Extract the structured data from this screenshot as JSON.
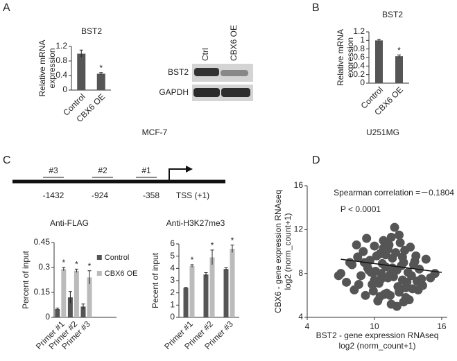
{
  "panels": [
    "A",
    "B",
    "C",
    "D"
  ],
  "captions": [
    "MCF-7",
    "U251MG"
  ],
  "blot": {
    "lanes": [
      "Ctrl",
      "CBX6 OE"
    ],
    "rows": [
      "BST2",
      "GAPDH"
    ]
  },
  "promoter": {
    "sites": [
      {
        "label": "#3",
        "position": "-1432"
      },
      {
        "label": "#2",
        "position": "-924"
      },
      {
        "label": "#1",
        "position": "-358"
      }
    ],
    "tss": "TSS (+1)"
  },
  "chart_data": [
    {
      "type": "bar",
      "title": "BST2",
      "ylabel": [
        "Relative mRNA",
        "expression"
      ],
      "categories": [
        "Control",
        "CBX6 OE"
      ],
      "values": [
        1.0,
        0.45
      ],
      "errors": [
        0.1,
        0.03
      ],
      "significance": [
        null,
        "*"
      ],
      "color": "#555555",
      "ylim": [
        0,
        1.2
      ],
      "yticks": [
        0,
        0.4,
        0.8,
        1.2
      ]
    },
    {
      "type": "bar",
      "title": "BST2",
      "ylabel": [
        "Relative mRNA",
        "expression"
      ],
      "categories": [
        "Control",
        "CBX6 OE"
      ],
      "values": [
        1.0,
        0.63
      ],
      "errors": [
        0.03,
        0.03
      ],
      "significance": [
        null,
        "*"
      ],
      "color": "#555555",
      "ylim": [
        0,
        1.2
      ],
      "yticks": [
        0,
        0.2,
        0.4,
        0.6,
        0.8,
        1,
        1.2
      ]
    },
    {
      "type": "grouped_bar",
      "title": "Anti-FLAG",
      "ylabel": [
        "Percent of input"
      ],
      "categories": [
        "Primer #1",
        "Primer #2",
        "Primer #3"
      ],
      "series": [
        {
          "name": "Control",
          "color": "#555555",
          "values": [
            0.05,
            0.12,
            0.065
          ],
          "errors": [
            0.005,
            0.035,
            0.015
          ],
          "significance": [
            null,
            null,
            null
          ]
        },
        {
          "name": "CBX6 OE",
          "color": "#bbbbbb",
          "values": [
            0.29,
            0.28,
            0.24
          ],
          "errors": [
            0.01,
            0.01,
            0.04
          ],
          "significance": [
            "*",
            "*",
            "*"
          ]
        }
      ],
      "legend": "right",
      "ylim": [
        0,
        0.45
      ],
      "yticks": [
        0,
        0.15,
        0.3,
        0.45
      ]
    },
    {
      "type": "grouped_bar",
      "title": "Anti-H3K27me3",
      "ylabel": [
        "Pecent of input"
      ],
      "categories": [
        "Primer #1",
        "Primer #2",
        "Primer #3"
      ],
      "series": [
        {
          "name": "Control",
          "color": "#555555",
          "values": [
            2.4,
            3.5,
            3.95
          ],
          "errors": [
            0.05,
            0.15,
            0.1
          ],
          "significance": [
            null,
            null,
            null
          ]
        },
        {
          "name": "CBX6 OE",
          "color": "#bbbbbb",
          "values": [
            4.2,
            4.9,
            5.6
          ],
          "errors": [
            0.1,
            0.6,
            0.3
          ],
          "significance": [
            "*",
            "*",
            "*"
          ]
        }
      ],
      "ylim": [
        0,
        6
      ],
      "yticks": [
        0,
        1,
        2,
        3,
        4,
        5,
        6
      ]
    },
    {
      "type": "scatter",
      "xlabel": [
        "BST2 - gene expression RNAseq",
        "log2 (norm_count+1)"
      ],
      "ylabel": [
        "CBX6 - gene expression RNAseq",
        "log2 (norm_count+1)"
      ],
      "annotations": [
        "Spearman correlation =－0.1804",
        "P < 0.0001"
      ],
      "color": "#555555",
      "x": [
        7.0,
        7.5,
        8.0,
        8.2,
        8.5,
        8.8,
        9.0,
        9.2,
        9.4,
        9.6,
        9.8,
        10.0,
        10.1,
        10.3,
        10.5,
        10.6,
        10.8,
        11.0,
        11.1,
        11.2,
        11.4,
        11.5,
        11.6,
        11.8,
        12.0,
        12.1,
        12.3,
        12.5,
        12.6,
        12.8,
        13.0,
        13.2,
        13.4,
        13.6,
        13.8,
        14.0,
        14.3,
        14.6,
        15.0,
        15.4,
        9.1,
        9.5,
        9.9,
        10.2,
        10.4,
        10.7,
        10.9,
        11.3,
        11.7,
        11.9,
        12.2,
        12.4,
        12.7,
        12.9,
        13.1,
        13.5,
        13.9,
        10.0,
        10.5,
        11.0,
        11.5,
        12.0,
        12.5,
        8.6,
        9.3,
        9.7,
        10.8,
        11.2,
        11.6,
        12.2,
        12.8,
        13.3,
        13.7,
        14.2,
        6.8,
        7.8,
        8.4,
        11.4,
        10.6,
        12.6
      ],
      "y": [
        8.0,
        7.2,
        8.8,
        6.5,
        9.5,
        7.8,
        10.0,
        6.0,
        8.5,
        9.2,
        7.0,
        10.5,
        8.2,
        5.5,
        9.8,
        7.5,
        11.0,
        8.6,
        6.2,
        10.2,
        7.9,
        5.2,
        9.4,
        12.2,
        8.3,
        6.8,
        10.8,
        7.4,
        9.0,
        5.8,
        8.1,
        10.4,
        6.6,
        9.1,
        7.3,
        8.4,
        6.9,
        9.3,
        7.6,
        8.0,
        9.0,
        8.3,
        6.4,
        9.6,
        7.1,
        8.9,
        6.1,
        10.6,
        7.7,
        9.9,
        6.3,
        8.7,
        10.1,
        7.2,
        5.6,
        8.8,
        6.5,
        7.4,
        5.9,
        9.7,
        11.3,
        5.0,
        9.5,
        7.0,
        11.2,
        8.1,
        10.3,
        7.6,
        8.5,
        11.5,
        6.7,
        7.8,
        9.6,
        7.5,
        7.8,
        9.0,
        10.6,
        6.0,
        8.0,
        5.4
      ],
      "trend": {
        "x": [
          7,
          16
        ],
        "y": [
          9.3,
          8.1
        ]
      },
      "xlim": [
        4,
        16.5
      ],
      "xticks": [
        4,
        10,
        16
      ],
      "ylim": [
        4,
        16
      ],
      "yticks": [
        4,
        8,
        12,
        16
      ]
    }
  ]
}
